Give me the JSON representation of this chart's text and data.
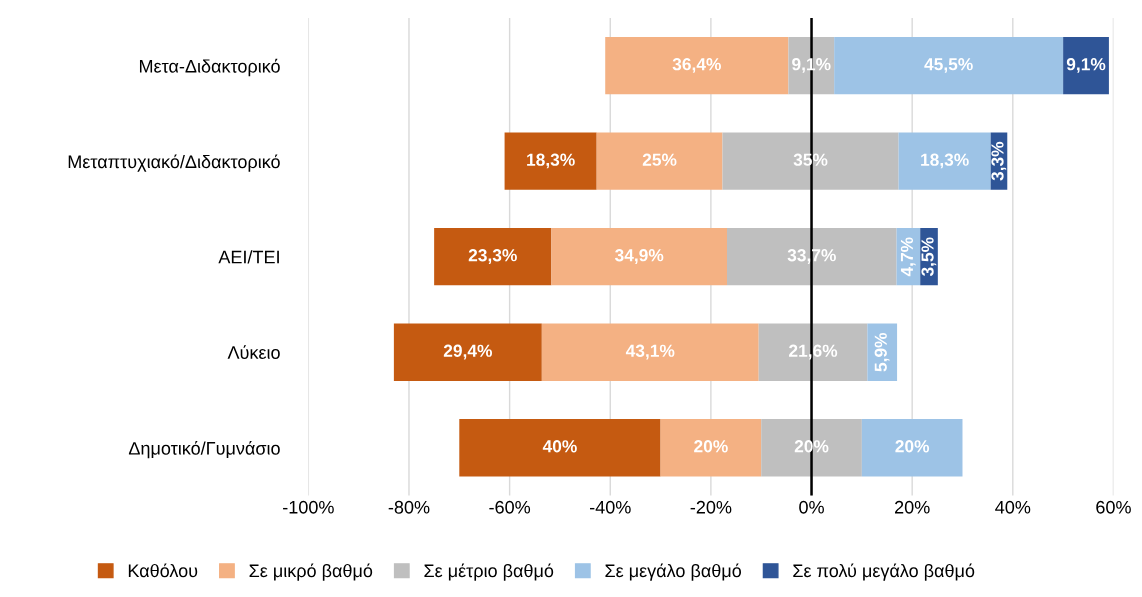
{
  "chart_data": {
    "type": "bar",
    "orientation": "horizontal",
    "categories": [
      "Μετα-Διδακτορικό",
      "Μεταπτυχιακό/Διδακτορικό",
      "ΑΕΙ/ΤΕΙ",
      "Λύκειο",
      "Δημοτικό/Γυμνάσιο"
    ],
    "series": [
      {
        "name": "Καθόλου",
        "color": "#c55a11",
        "values": [
          null,
          18.3,
          23.3,
          29.4,
          40
        ],
        "base": [
          null,
          -61,
          -75,
          -83,
          -70
        ],
        "value_labels": [
          null,
          "18,3%",
          "23,3%",
          "29,4%",
          "40%"
        ]
      },
      {
        "name": "Σε μικρό βαθμό",
        "color": "#f4b183",
        "values": [
          36.4,
          25,
          34.9,
          43.1,
          20
        ],
        "base": [
          -41,
          -42.7,
          -51.7,
          -53.6,
          -30
        ],
        "value_labels": [
          "36,4%",
          "25%",
          "34,9%",
          "43,1%",
          "20%"
        ]
      },
      {
        "name": "Σε μέτριο βαθμό",
        "color": "#bfbfbf",
        "values": [
          9.1,
          35,
          33.7,
          21.6,
          20
        ],
        "base": [
          -4.6,
          -17.7,
          -16.8,
          -10.5,
          -10
        ],
        "value_labels": [
          "9,1%",
          "35%",
          "33,7%",
          "21,6%",
          "20%"
        ]
      },
      {
        "name": "Σε μεγάλο βαθμό",
        "color": "#9dc3e6",
        "values": [
          45.5,
          18.3,
          4.7,
          5.9,
          20
        ],
        "base": [
          4.5,
          17.3,
          16.9,
          11.1,
          10
        ],
        "value_labels": [
          "45,5%",
          "18,3%",
          "4,7%",
          "5,9%",
          "20%"
        ]
      },
      {
        "name": "Σε πολύ μεγάλο βαθμό",
        "color": "#2f5597",
        "values": [
          9.1,
          3.3,
          3.5,
          null,
          null
        ],
        "base": [
          50,
          35.6,
          21.6,
          null,
          null
        ],
        "value_labels": [
          "9,1%",
          "3,3%",
          "3,5%",
          null,
          null
        ]
      }
    ],
    "xlim": [
      -100,
      60
    ],
    "xticks": [
      {
        "value": -100,
        "label": "-100%"
      },
      {
        "value": -80,
        "label": "-80%"
      },
      {
        "value": -60,
        "label": "-60%"
      },
      {
        "value": -40,
        "label": "-40%"
      },
      {
        "value": -20,
        "label": "-20%"
      },
      {
        "value": 0,
        "label": "0%"
      },
      {
        "value": 20,
        "label": "20%"
      },
      {
        "value": 40,
        "label": "40%"
      },
      {
        "value": 60,
        "label": "60%"
      }
    ],
    "ref_lines": [
      {
        "axis": "x",
        "value": 0,
        "color": "#000000"
      }
    ],
    "grid": "x",
    "legend": "bottom"
  }
}
